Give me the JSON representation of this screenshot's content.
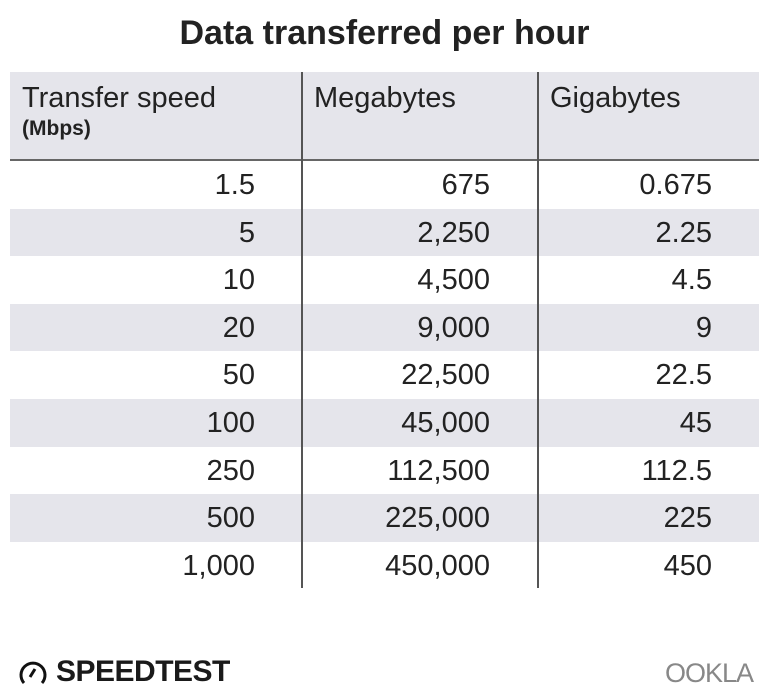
{
  "title": "Data transferred per hour",
  "chart_data": {
    "type": "table",
    "title": "Data transferred per hour",
    "columns": [
      {
        "label": "Transfer speed",
        "sub": "(Mbps)"
      },
      {
        "label": "Megabytes",
        "sub": ""
      },
      {
        "label": "Gigabytes",
        "sub": ""
      }
    ],
    "rows": [
      [
        "1.5",
        "675",
        "0.675"
      ],
      [
        "5",
        "2,250",
        "2.25"
      ],
      [
        "10",
        "4,500",
        "4.5"
      ],
      [
        "20",
        "9,000",
        "9"
      ],
      [
        "50",
        "22,500",
        "22.5"
      ],
      [
        "100",
        "45,000",
        "45"
      ],
      [
        "250",
        "112,500",
        "112.5"
      ],
      [
        "500",
        "225,000",
        "225"
      ],
      [
        "1,000",
        "450,000",
        "450"
      ]
    ]
  },
  "colors": {
    "header_bg": "#e5e5eb",
    "stripe": "#e5e5eb",
    "text": "#222222"
  },
  "logos": {
    "left": "SPEEDTEST",
    "right": "OOKLA"
  }
}
